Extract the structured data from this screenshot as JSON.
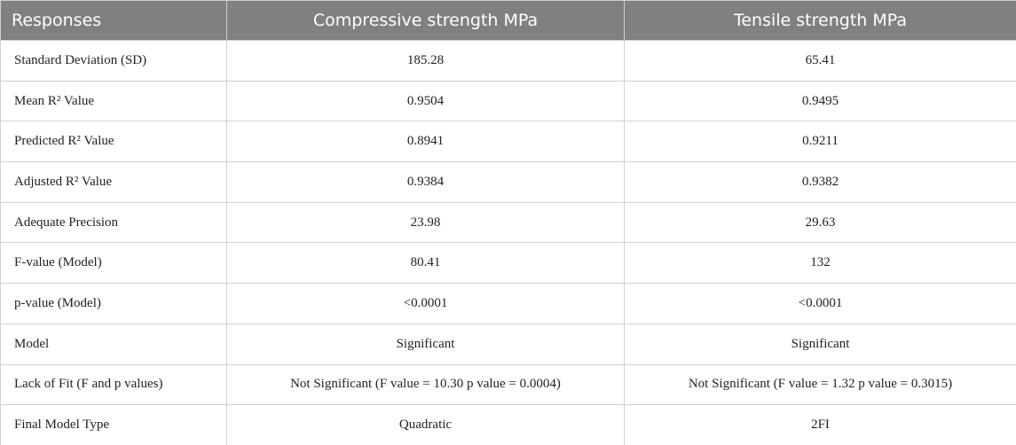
{
  "table": {
    "header": [
      "Responses",
      "Compressive strength MPa",
      "Tensile strength MPa"
    ],
    "rows": [
      [
        "Standard Deviation (SD)",
        "185.28",
        "65.41"
      ],
      [
        "Mean R² Value",
        "0.9504",
        "0.9495"
      ],
      [
        "Predicted R² Value",
        "0.8941",
        "0.9211"
      ],
      [
        "Adjusted R² Value",
        "0.9384",
        "0.9382"
      ],
      [
        "Adequate Precision",
        "23.98",
        "29.63"
      ],
      [
        "F-value (Model)",
        "80.41",
        "132"
      ],
      [
        "p-value (Model)",
        "<0.0001",
        "<0.0001"
      ],
      [
        "Model",
        "Significant",
        "Significant"
      ],
      [
        "Lack of Fit (F and p values)",
        "Not Significant (F value = 10.30 p value = 0.0004)",
        "Not Significant (F value = 1.32 p value = 0.3015)"
      ],
      [
        "Final Model Type",
        "Quadratic",
        "2FI"
      ]
    ]
  }
}
